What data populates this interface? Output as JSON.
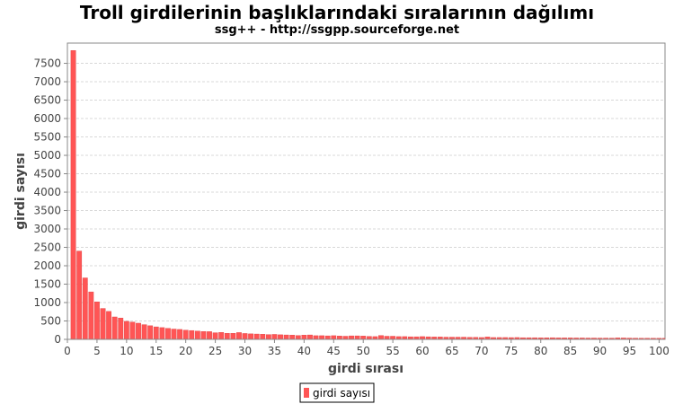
{
  "chart_data": {
    "type": "bar",
    "title": "Troll girdilerinin başlıklarındaki sıralarının dağılımı",
    "subtitle": "ssg++ - http://ssgpp.sourceforge.net",
    "xlabel": "girdi sırası",
    "ylabel": "girdi sayısı",
    "xlim": [
      0,
      101
    ],
    "ylim": [
      0,
      8050
    ],
    "xticks": [
      0,
      5,
      10,
      15,
      20,
      25,
      30,
      35,
      40,
      45,
      50,
      55,
      60,
      65,
      70,
      75,
      80,
      85,
      90,
      95,
      100
    ],
    "yticks": [
      0,
      500,
      1000,
      1500,
      2000,
      2500,
      3000,
      3500,
      4000,
      4500,
      5000,
      5500,
      6000,
      6500,
      7000,
      7500
    ],
    "grid": true,
    "legend_position": "bottom-center",
    "series": [
      {
        "name": "girdi sayısı",
        "color": "#ff5555",
        "x": [
          1,
          2,
          3,
          4,
          5,
          6,
          7,
          8,
          9,
          10,
          11,
          12,
          13,
          14,
          15,
          16,
          17,
          18,
          19,
          20,
          21,
          22,
          23,
          24,
          25,
          26,
          27,
          28,
          29,
          30,
          31,
          32,
          33,
          34,
          35,
          36,
          37,
          38,
          39,
          40,
          41,
          42,
          43,
          44,
          45,
          46,
          47,
          48,
          49,
          50,
          51,
          52,
          53,
          54,
          55,
          56,
          57,
          58,
          59,
          60,
          61,
          62,
          63,
          64,
          65,
          66,
          67,
          68,
          69,
          70,
          71,
          72,
          73,
          74,
          75,
          76,
          77,
          78,
          79,
          80,
          81,
          82,
          83,
          84,
          85,
          86,
          87,
          88,
          89,
          90,
          91,
          92,
          93,
          94,
          95,
          96,
          97,
          98,
          99,
          100,
          101
        ],
        "values": [
          7850,
          2400,
          1670,
          1290,
          1020,
          840,
          760,
          610,
          580,
          490,
          470,
          440,
          400,
          370,
          340,
          320,
          300,
          280,
          270,
          250,
          240,
          225,
          215,
          210,
          180,
          190,
          165,
          165,
          185,
          160,
          150,
          145,
          140,
          130,
          135,
          125,
          120,
          115,
          105,
          115,
          120,
          100,
          100,
          95,
          100,
          90,
          85,
          95,
          95,
          90,
          80,
          75,
          105,
          85,
          85,
          75,
          75,
          70,
          70,
          75,
          70,
          65,
          65,
          60,
          60,
          60,
          60,
          55,
          55,
          50,
          65,
          50,
          50,
          50,
          48,
          50,
          45,
          45,
          45,
          42,
          42,
          45,
          40,
          40,
          40,
          38,
          38,
          36,
          36,
          35,
          35,
          34,
          40,
          38,
          35,
          33,
          32,
          32,
          30,
          30,
          30
        ]
      }
    ]
  }
}
